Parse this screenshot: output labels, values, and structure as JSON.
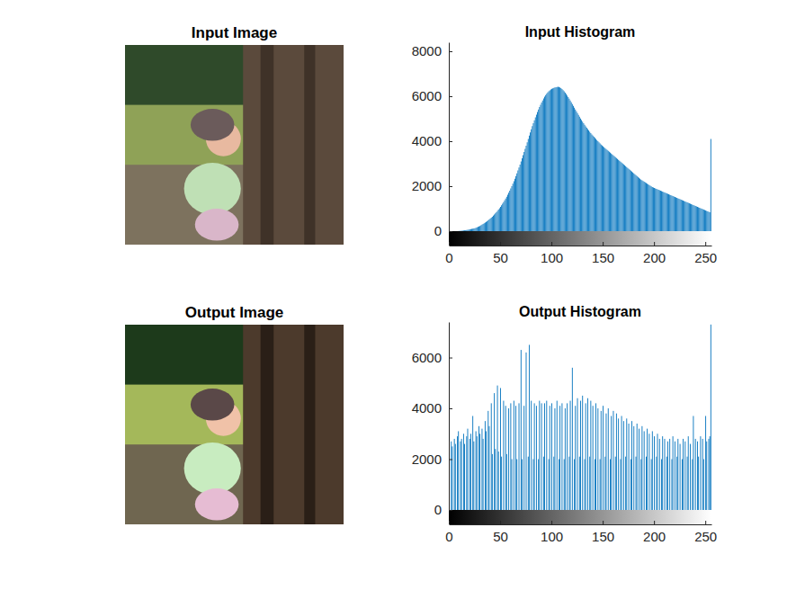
{
  "chart_data": [
    {
      "type": "image",
      "title": "Input Image"
    },
    {
      "type": "histogram",
      "title": "Input Histogram",
      "color": "#0072bd",
      "bins": [
        0,
        1,
        2,
        3,
        4,
        5,
        6,
        7,
        8,
        9,
        10,
        11,
        12,
        13,
        14,
        15,
        16,
        17,
        18,
        19,
        20,
        21,
        22,
        23,
        24,
        25,
        26,
        27,
        28,
        29,
        30,
        31,
        32,
        33,
        34,
        35,
        36,
        37,
        38,
        39,
        40,
        41,
        42,
        43,
        44,
        45,
        46,
        47,
        48,
        49,
        50,
        51,
        52,
        53,
        54,
        55,
        56,
        57,
        58,
        59,
        60,
        61,
        62,
        63,
        64,
        65,
        66,
        67,
        68,
        69,
        70,
        71,
        72,
        73,
        74,
        75,
        76,
        77,
        78,
        79,
        80,
        81,
        82,
        83,
        84,
        85,
        86,
        87,
        88,
        89,
        90,
        91,
        92,
        93,
        94,
        95,
        96,
        97,
        98,
        99,
        100,
        101,
        102,
        103,
        104,
        105,
        106,
        107,
        108,
        109,
        110,
        111,
        112,
        113,
        114,
        115,
        116,
        117,
        118,
        119,
        120,
        121,
        122,
        123,
        124,
        125,
        126,
        127,
        128,
        129,
        130,
        131,
        132,
        133,
        134,
        135,
        136,
        137,
        138,
        139,
        140,
        141,
        142,
        143,
        144,
        145,
        146,
        147,
        148,
        149,
        150,
        151,
        152,
        153,
        154,
        155,
        156,
        157,
        158,
        159,
        160,
        161,
        162,
        163,
        164,
        165,
        166,
        167,
        168,
        169,
        170,
        171,
        172,
        173,
        174,
        175,
        176,
        177,
        178,
        179,
        180,
        181,
        182,
        183,
        184,
        185,
        186,
        187,
        188,
        189,
        190,
        191,
        192,
        193,
        194,
        195,
        196,
        197,
        198,
        199,
        200,
        201,
        202,
        203,
        204,
        205,
        206,
        207,
        208,
        209,
        210,
        211,
        212,
        213,
        214,
        215,
        216,
        217,
        218,
        219,
        220,
        221,
        222,
        223,
        224,
        225,
        226,
        227,
        228,
        229,
        230,
        231,
        232,
        233,
        234,
        235,
        236,
        237,
        238,
        239,
        240,
        241,
        242,
        243,
        244,
        245,
        246,
        247,
        248,
        249,
        250,
        251,
        252,
        253,
        254,
        255,
        256
      ],
      "counts": [
        0,
        0,
        0,
        0,
        0,
        0,
        0,
        0,
        0,
        5,
        10,
        15,
        20,
        25,
        30,
        35,
        40,
        50,
        60,
        70,
        80,
        90,
        100,
        110,
        120,
        130,
        150,
        170,
        190,
        210,
        230,
        260,
        290,
        320,
        350,
        380,
        410,
        440,
        480,
        520,
        560,
        600,
        640,
        690,
        740,
        790,
        840,
        900,
        960,
        1020,
        1080,
        1150,
        1220,
        1290,
        1370,
        1450,
        1530,
        1620,
        1710,
        1800,
        1900,
        2000,
        2110,
        2220,
        2330,
        2450,
        2570,
        2700,
        2830,
        2960,
        3100,
        3240,
        3380,
        3520,
        3660,
        3800,
        3950,
        4100,
        4250,
        4390,
        4530,
        4670,
        4800,
        4930,
        5060,
        5180,
        5300,
        5410,
        5520,
        5620,
        5720,
        5810,
        5900,
        5980,
        6050,
        6110,
        6170,
        6220,
        6260,
        6300,
        6330,
        6350,
        6370,
        6390,
        6400,
        6410,
        6420,
        6410,
        6390,
        6360,
        6320,
        6270,
        6220,
        6160,
        6100,
        6030,
        5960,
        5890,
        5810,
        5730,
        5650,
        5570,
        5490,
        5410,
        5330,
        5250,
        5170,
        5090,
        5010,
        4940,
        4870,
        4800,
        4730,
        4660,
        4600,
        4540,
        4480,
        4420,
        4360,
        4300,
        4250,
        4200,
        4150,
        4100,
        4050,
        4000,
        3950,
        3900,
        3850,
        3810,
        3770,
        3730,
        3690,
        3650,
        3610,
        3570,
        3530,
        3490,
        3450,
        3410,
        3370,
        3330,
        3290,
        3250,
        3210,
        3170,
        3130,
        3090,
        3050,
        3010,
        2970,
        2930,
        2890,
        2850,
        2810,
        2770,
        2730,
        2690,
        2650,
        2610,
        2570,
        2530,
        2490,
        2450,
        2410,
        2370,
        2330,
        2290,
        2260,
        2230,
        2200,
        2170,
        2140,
        2110,
        2080,
        2050,
        2020,
        1990,
        1960,
        1940,
        1920,
        1900,
        1880,
        1860,
        1840,
        1820,
        1800,
        1780,
        1760,
        1740,
        1720,
        1700,
        1680,
        1660,
        1640,
        1620,
        1600,
        1580,
        1560,
        1540,
        1520,
        1500,
        1480,
        1460,
        1440,
        1420,
        1400,
        1380,
        1360,
        1340,
        1320,
        1300,
        1280,
        1260,
        1240,
        1220,
        1200,
        1180,
        1160,
        1140,
        1120,
        1100,
        1080,
        1060,
        1040,
        1020,
        1000,
        980,
        960,
        940,
        920,
        900,
        880,
        860,
        840,
        4100
      ],
      "xlim": [
        0,
        256
      ],
      "xticks": [
        0,
        50,
        100,
        150,
        200,
        250
      ],
      "ylim": [
        0,
        8400
      ],
      "yticks": [
        0,
        2000,
        4000,
        6000,
        8000
      ]
    },
    {
      "type": "image",
      "title": "Output Image"
    },
    {
      "type": "histogram",
      "title": "Output Histogram",
      "color": "#0072bd",
      "bins": [
        0,
        1,
        2,
        3,
        4,
        5,
        6,
        7,
        8,
        9,
        10,
        11,
        12,
        13,
        14,
        15,
        16,
        17,
        18,
        19,
        20,
        21,
        22,
        23,
        24,
        25,
        26,
        27,
        28,
        29,
        30,
        31,
        32,
        33,
        34,
        35,
        36,
        37,
        38,
        39,
        40,
        41,
        42,
        43,
        44,
        45,
        46,
        47,
        48,
        49,
        50,
        51,
        52,
        53,
        54,
        55,
        56,
        57,
        58,
        59,
        60,
        61,
        62,
        63,
        64,
        65,
        66,
        67,
        68,
        69,
        70,
        71,
        72,
        73,
        74,
        75,
        76,
        77,
        78,
        79,
        80,
        81,
        82,
        83,
        84,
        85,
        86,
        87,
        88,
        89,
        90,
        91,
        92,
        93,
        94,
        95,
        96,
        97,
        98,
        99,
        100,
        101,
        102,
        103,
        104,
        105,
        106,
        107,
        108,
        109,
        110,
        111,
        112,
        113,
        114,
        115,
        116,
        117,
        118,
        119,
        120,
        121,
        122,
        123,
        124,
        125,
        126,
        127,
        128,
        129,
        130,
        131,
        132,
        133,
        134,
        135,
        136,
        137,
        138,
        139,
        140,
        141,
        142,
        143,
        144,
        145,
        146,
        147,
        148,
        149,
        150,
        151,
        152,
        153,
        154,
        155,
        156,
        157,
        158,
        159,
        160,
        161,
        162,
        163,
        164,
        165,
        166,
        167,
        168,
        169,
        170,
        171,
        172,
        173,
        174,
        175,
        176,
        177,
        178,
        179,
        180,
        181,
        182,
        183,
        184,
        185,
        186,
        187,
        188,
        189,
        190,
        191,
        192,
        193,
        194,
        195,
        196,
        197,
        198,
        199,
        200,
        201,
        202,
        203,
        204,
        205,
        206,
        207,
        208,
        209,
        210,
        211,
        212,
        213,
        214,
        215,
        216,
        217,
        218,
        219,
        220,
        221,
        222,
        223,
        224,
        225,
        226,
        227,
        228,
        229,
        230,
        231,
        232,
        233,
        234,
        235,
        236,
        237,
        238,
        239,
        240,
        241,
        242,
        243,
        244,
        245,
        246,
        247,
        248,
        249,
        250,
        251,
        252,
        253,
        254,
        255,
        256
      ],
      "counts": [
        2600,
        0,
        2700,
        2500,
        0,
        2800,
        2600,
        0,
        2900,
        3100,
        0,
        2700,
        2800,
        0,
        3000,
        2600,
        0,
        2900,
        3200,
        0,
        2800,
        3000,
        0,
        3700,
        2700,
        0,
        3100,
        2900,
        0,
        3300,
        3000,
        0,
        3200,
        2800,
        0,
        3500,
        3100,
        0,
        3900,
        3300,
        0,
        4200,
        2200,
        0,
        4600,
        2400,
        0,
        4900,
        2300,
        0,
        4800,
        2100,
        0,
        4300,
        0,
        4100,
        2200,
        0,
        4000,
        0,
        4200,
        2000,
        0,
        4300,
        0,
        4100,
        2000,
        0,
        4200,
        0,
        6300,
        2000,
        0,
        4100,
        0,
        6200,
        0,
        2100,
        6500,
        0,
        4300,
        0,
        2000,
        4200,
        0,
        4100,
        0,
        2000,
        4300,
        0,
        4200,
        0,
        2100,
        4200,
        0,
        4300,
        0,
        2000,
        4100,
        0,
        4200,
        0,
        2100,
        4000,
        0,
        4300,
        0,
        2000,
        4100,
        0,
        4200,
        0,
        2000,
        4000,
        0,
        4200,
        0,
        2100,
        4300,
        0,
        5600,
        0,
        2000,
        4100,
        0,
        4400,
        0,
        2100,
        4300,
        0,
        4500,
        0,
        2000,
        4200,
        0,
        4400,
        0,
        2100,
        4300,
        0,
        4100,
        0,
        2000,
        4200,
        0,
        4000,
        0,
        2000,
        3900,
        0,
        4100,
        0,
        2100,
        3800,
        0,
        4000,
        0,
        2000,
        3700,
        0,
        3900,
        0,
        2100,
        3800,
        0,
        3600,
        0,
        2000,
        3700,
        0,
        3500,
        0,
        2100,
        3600,
        0,
        3400,
        0,
        2000,
        3500,
        0,
        3300,
        0,
        2100,
        3400,
        0,
        3200,
        0,
        2000,
        3300,
        0,
        3100,
        0,
        2100,
        3200,
        0,
        3000,
        0,
        2000,
        3100,
        0,
        2900,
        0,
        2100,
        3000,
        0,
        2800,
        0,
        2000,
        2900,
        0,
        2800,
        0,
        2100,
        2700,
        0,
        2800,
        0,
        2000,
        2900,
        0,
        2700,
        0,
        2100,
        2800,
        0,
        2600,
        0,
        2000,
        2800,
        0,
        2700,
        0,
        2100,
        2900,
        0,
        2600,
        0,
        2000,
        3700,
        0,
        2800,
        0,
        2700,
        2100,
        0,
        2900,
        0,
        2800,
        2000,
        0,
        3700,
        2700,
        0,
        2800,
        2900,
        7300
      ],
      "xlim": [
        0,
        256
      ],
      "xticks": [
        0,
        50,
        100,
        150,
        200,
        250
      ],
      "ylim": [
        0,
        7400
      ],
      "yticks": [
        0,
        2000,
        4000,
        6000
      ]
    }
  ]
}
